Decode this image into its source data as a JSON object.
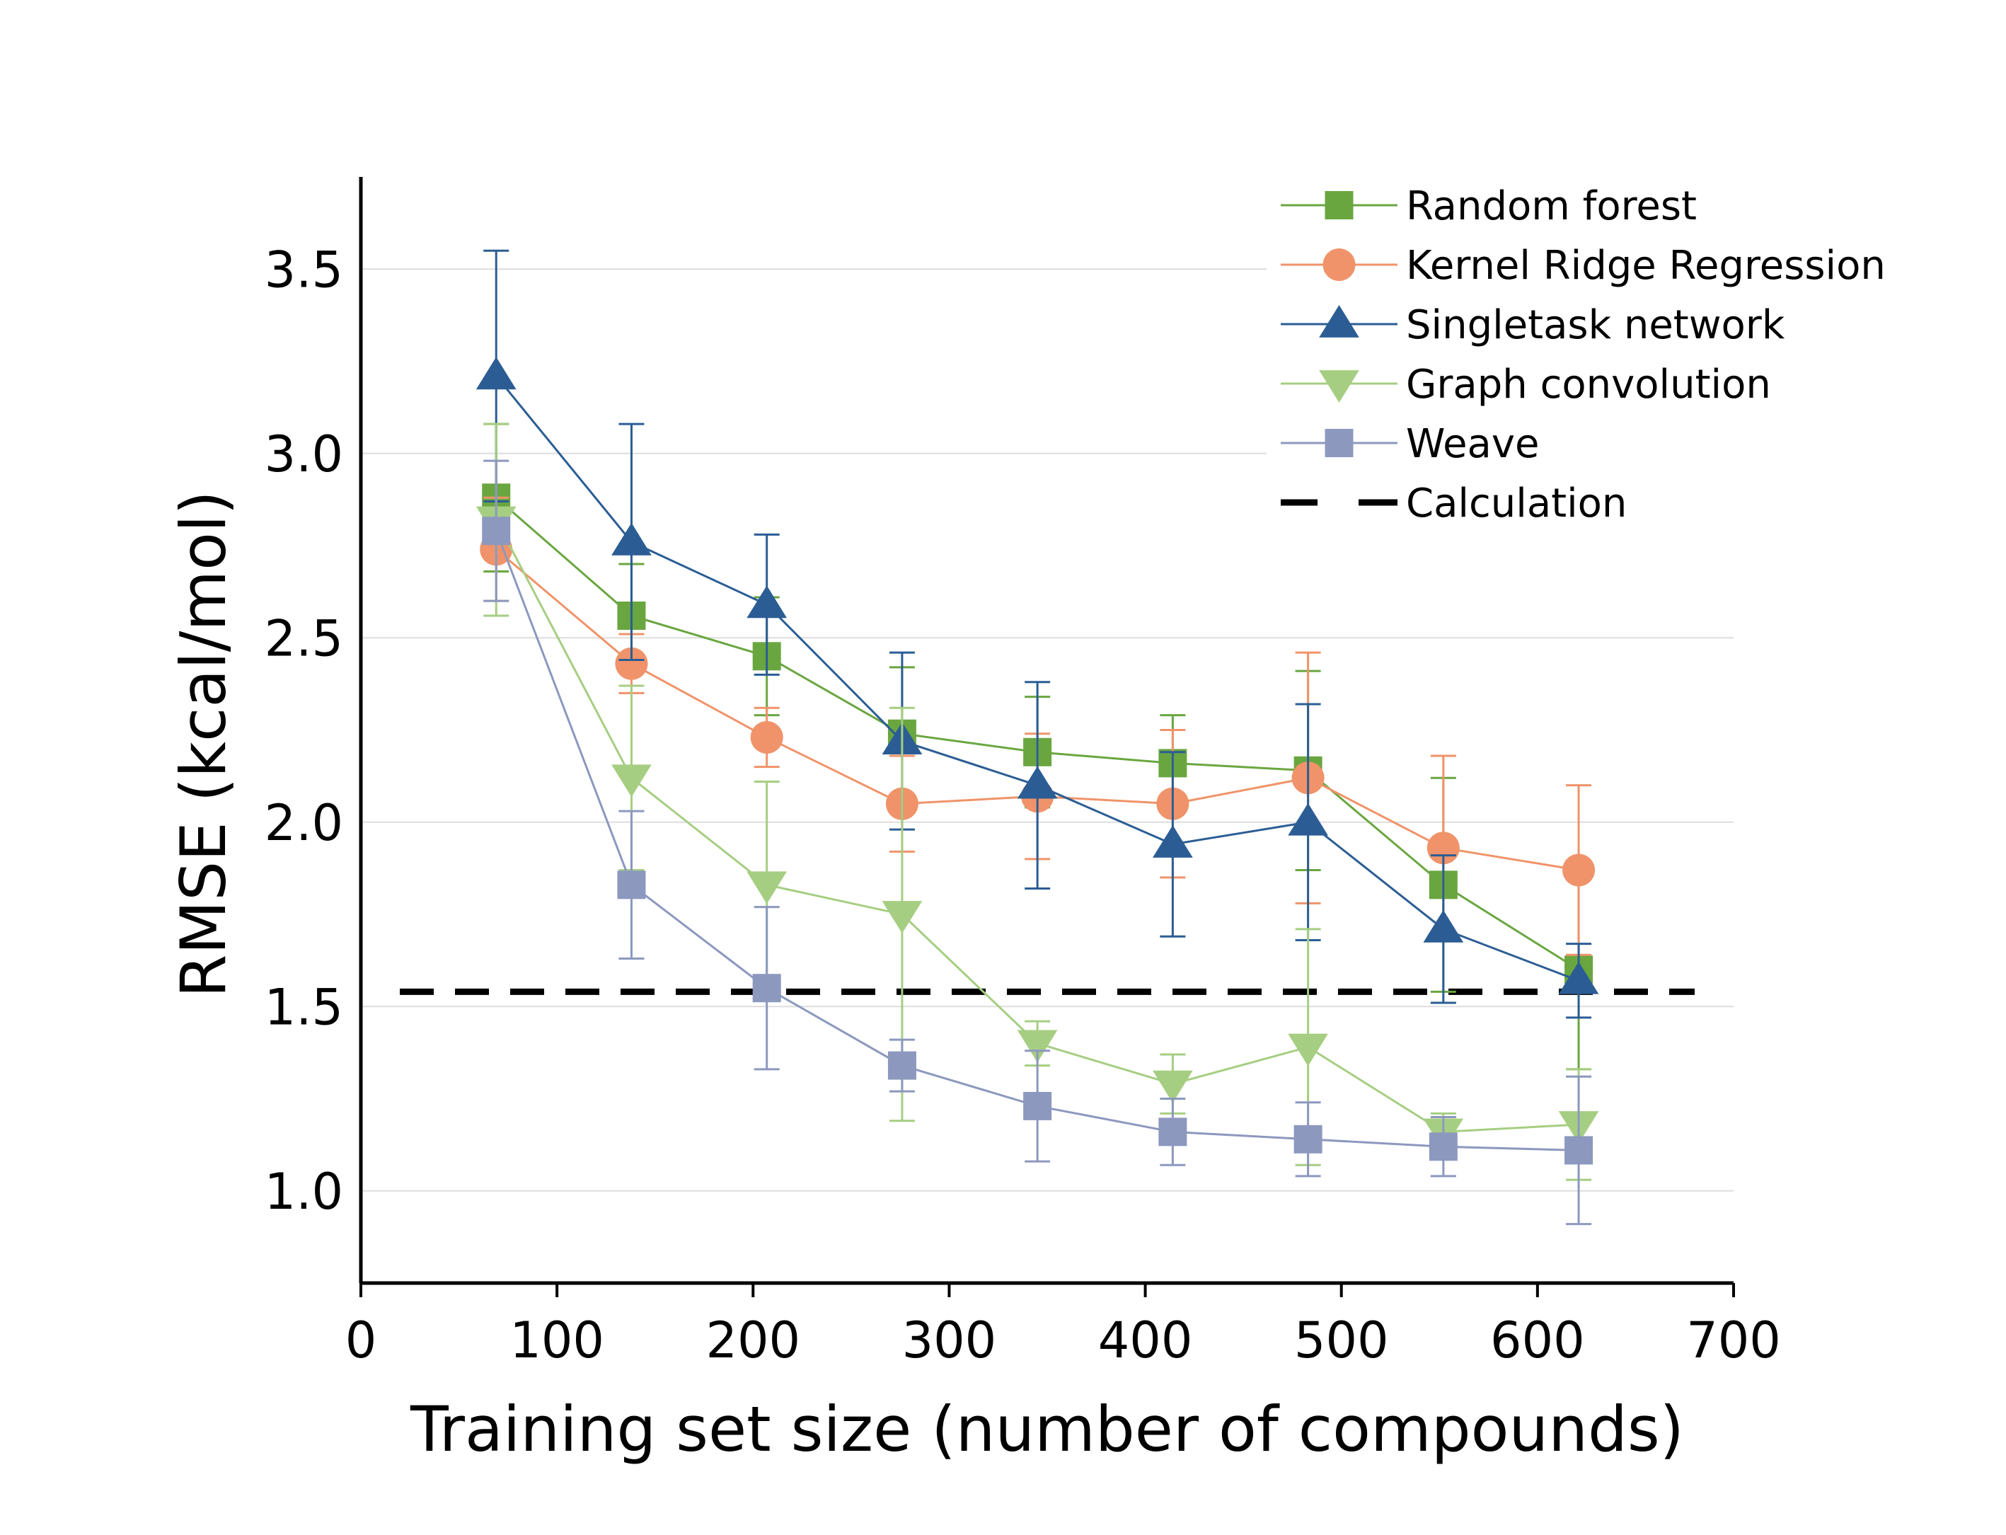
{
  "chart_data": {
    "type": "line",
    "title": "",
    "xlabel": "Training set size (number of compounds)",
    "ylabel": "RMSE (kcal/mol)",
    "xlim": [
      0,
      700
    ],
    "ylim": [
      0.75,
      3.75
    ],
    "xticks": [
      0,
      100,
      200,
      300,
      400,
      500,
      600,
      700
    ],
    "xtick_labels": [
      "0",
      "100",
      "200",
      "300",
      "400",
      "500",
      "600",
      "700"
    ],
    "yticks": [
      1.0,
      1.5,
      2.0,
      2.5,
      3.0,
      3.5
    ],
    "ytick_labels": [
      "1.0",
      "1.5",
      "2.0",
      "2.5",
      "3.0",
      "3.5"
    ],
    "grid": "horizontal",
    "legend_position": "top-right",
    "x": [
      69,
      138,
      207,
      276,
      345,
      414,
      483,
      552,
      621
    ],
    "series": [
      {
        "name": "Random forest",
        "color": "#6aa640",
        "marker": "square",
        "values": [
          2.88,
          2.56,
          2.45,
          2.24,
          2.19,
          2.16,
          2.14,
          1.83,
          1.6
        ],
        "errors": [
          0.2,
          0.14,
          0.16,
          0.18,
          0.15,
          0.13,
          0.27,
          0.29,
          0.27
        ]
      },
      {
        "name": "Kernel Ridge Regression",
        "color": "#f0936a",
        "marker": "circle",
        "values": [
          2.74,
          2.43,
          2.23,
          2.05,
          2.07,
          2.05,
          2.12,
          1.93,
          1.87
        ],
        "errors": [
          0.14,
          0.08,
          0.08,
          0.13,
          0.17,
          0.2,
          0.34,
          0.25,
          0.23
        ]
      },
      {
        "name": "Singletask network",
        "color": "#2b5d94",
        "marker": "triangle-up",
        "values": [
          3.21,
          2.76,
          2.59,
          2.22,
          2.1,
          1.94,
          2.0,
          1.71,
          1.57
        ],
        "errors": [
          0.34,
          0.32,
          0.19,
          0.24,
          0.28,
          0.25,
          0.32,
          0.2,
          0.1
        ]
      },
      {
        "name": "Graph convolution",
        "color": "#a6ce82",
        "marker": "triangle-down",
        "values": [
          2.82,
          2.12,
          1.83,
          1.75,
          1.4,
          1.29,
          1.39,
          1.16,
          1.18
        ],
        "errors": [
          0.26,
          0.25,
          0.28,
          0.56,
          0.06,
          0.08,
          0.32,
          0.05,
          0.15
        ]
      },
      {
        "name": "Weave",
        "color": "#8c98be",
        "marker": "square",
        "values": [
          2.79,
          1.83,
          1.55,
          1.34,
          1.23,
          1.16,
          1.14,
          1.12,
          1.11
        ],
        "errors": [
          0.19,
          0.2,
          0.22,
          0.07,
          0.15,
          0.09,
          0.1,
          0.08,
          0.2
        ]
      }
    ],
    "reference_lines": [
      {
        "name": "Calculation",
        "color": "#000000",
        "style": "dashed",
        "y": 1.54
      }
    ]
  }
}
